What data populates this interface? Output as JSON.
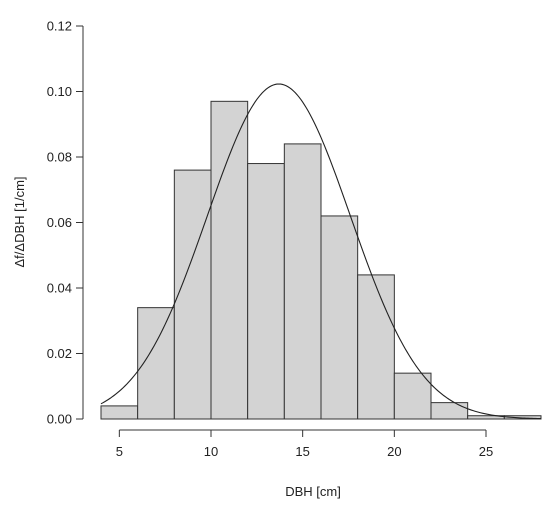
{
  "chart_data": {
    "type": "bar",
    "title": "",
    "xlabel": "DBH [cm]",
    "ylabel": "Δf/ΔDBH [1/cm]",
    "xlim": [
      4,
      28
    ],
    "ylim": [
      0,
      0.12
    ],
    "x_ticks": [
      5,
      10,
      15,
      20,
      25
    ],
    "x_tick_labels": [
      "5",
      "10",
      "15",
      "20",
      "25"
    ],
    "y_ticks": [
      0.0,
      0.02,
      0.04,
      0.06,
      0.08,
      0.1,
      0.12
    ],
    "y_tick_labels": [
      "0.00",
      "0.02",
      "0.04",
      "0.06",
      "0.08",
      "0.10",
      "0.12"
    ],
    "bins": [
      {
        "x0": 4,
        "x1": 6,
        "value": 0.004
      },
      {
        "x0": 6,
        "x1": 8,
        "value": 0.034
      },
      {
        "x0": 8,
        "x1": 10,
        "value": 0.076
      },
      {
        "x0": 10,
        "x1": 12,
        "value": 0.097
      },
      {
        "x0": 12,
        "x1": 14,
        "value": 0.078
      },
      {
        "x0": 14,
        "x1": 16,
        "value": 0.084
      },
      {
        "x0": 16,
        "x1": 18,
        "value": 0.062
      },
      {
        "x0": 18,
        "x1": 20,
        "value": 0.044
      },
      {
        "x0": 20,
        "x1": 22,
        "value": 0.014
      },
      {
        "x0": 22,
        "x1": 24,
        "value": 0.005
      },
      {
        "x0": 24,
        "x1": 26,
        "value": 0.001
      },
      {
        "x0": 26,
        "x1": 28,
        "value": 0.001
      }
    ],
    "fitted_curve": {
      "type": "normal",
      "mean": 13.7,
      "sd": 3.9,
      "range": [
        4,
        28
      ]
    },
    "grid": false,
    "legend": "none"
  }
}
